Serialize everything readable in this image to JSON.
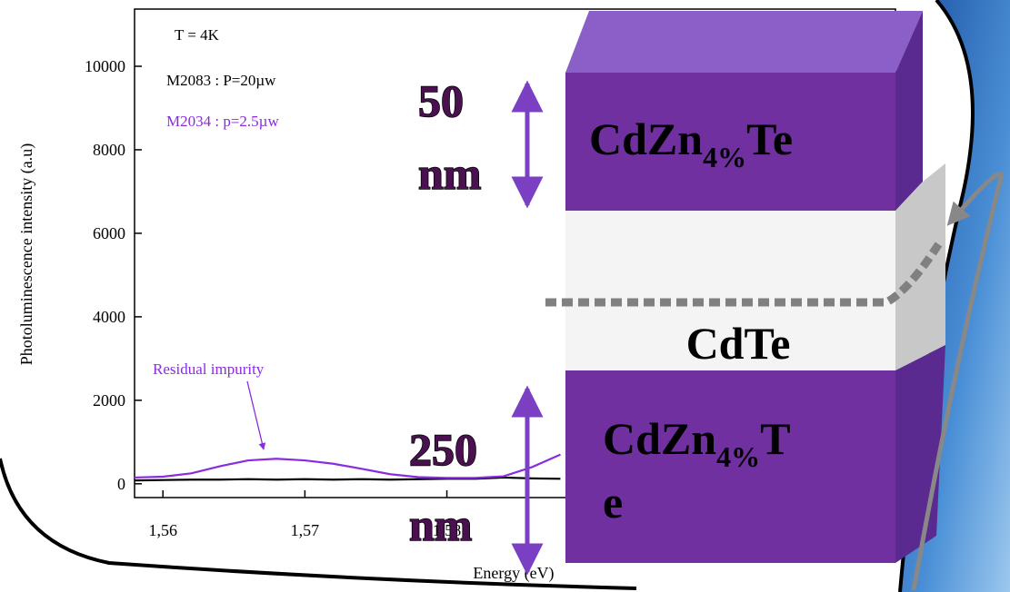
{
  "chart_data": {
    "type": "line",
    "x_label": "Energy (eV)",
    "y_label": "Photoluminescence intensity (a.u)",
    "annotations": [
      "T = 4K",
      "Residual impurity"
    ],
    "x": [
      1.558,
      1.56,
      1.562,
      1.564,
      1.566,
      1.568,
      1.57,
      1.572,
      1.574,
      1.576,
      1.578,
      1.58,
      1.582,
      1.584,
      1.586,
      1.588
    ],
    "series": [
      {
        "name": "M2083 : P=20µw",
        "color": "#000000",
        "values": [
          80,
          90,
          100,
          100,
          110,
          100,
          110,
          100,
          110,
          100,
          110,
          120,
          120,
          150,
          130,
          120
        ]
      },
      {
        "name": "M2034 : p=2.5µw",
        "color": "#8a2be2",
        "values": [
          150,
          170,
          250,
          420,
          560,
          600,
          560,
          480,
          360,
          230,
          160,
          140,
          140,
          180,
          400,
          700
        ]
      }
    ],
    "xlim": [
      1.558,
      1.6116
    ],
    "ylim": [
      -330,
      11370
    ],
    "xticks": [
      {
        "value": 1.56,
        "label": "1,56"
      },
      {
        "value": 1.57,
        "label": "1,57"
      },
      {
        "value": 1.58,
        "label": "1,58"
      }
    ],
    "yticks": [
      0,
      2000,
      4000,
      6000,
      8000,
      10000
    ]
  },
  "diagram": {
    "top_layer": {
      "text": "CdZn",
      "sub": "4%",
      "tail": "Te"
    },
    "middle_layer": "CdTe",
    "bottom_layer": {
      "text": "CdZn",
      "sub": "4%",
      "tail": "T",
      "wrap": "e"
    },
    "top_thickness": {
      "number": "50",
      "unit": "nm"
    },
    "bottom_thickness": {
      "number": "250",
      "unit": "nm"
    }
  }
}
